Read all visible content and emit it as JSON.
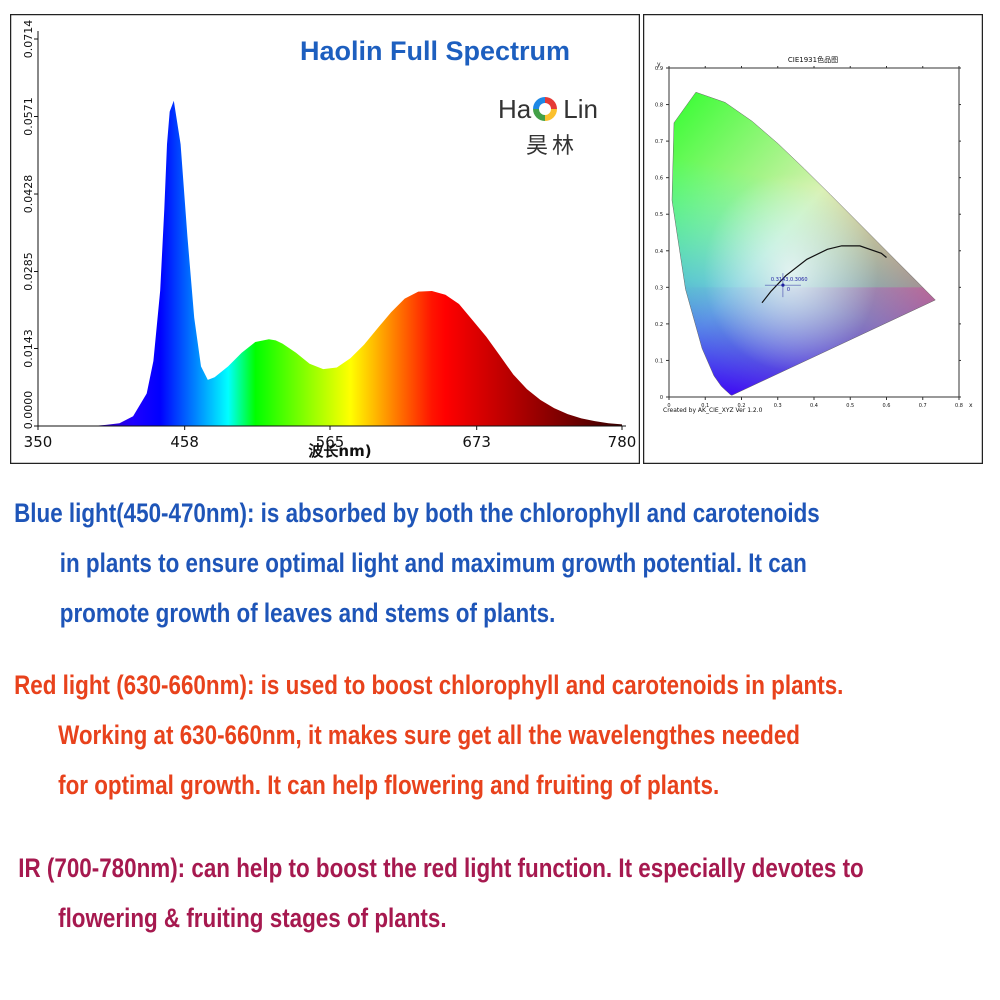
{
  "header": {
    "brand_title": "Haolin Full Spectrum",
    "logo": {
      "text_left": "Ha",
      "text_right": "Lin",
      "text_cn": "昊林",
      "ring_colors": [
        "#e53935",
        "#fbc02d",
        "#43a047",
        "#1e88e5"
      ]
    }
  },
  "chart_data": [
    {
      "type": "area",
      "xlabel": "波长nm)",
      "ylabel": "",
      "xlim": [
        350,
        780
      ],
      "ylim": [
        0,
        0.0714
      ],
      "x_ticks": [
        "350",
        "458",
        "565",
        "673",
        "780"
      ],
      "y_ticks": [
        "0.0000",
        "0.0143",
        "0.0285",
        "0.0428",
        "0.0571",
        "0.0714"
      ],
      "grid": false,
      "fill": "wavelength-color gradient",
      "x": [
        350,
        390,
        400,
        410,
        420,
        430,
        435,
        440,
        443,
        445,
        447,
        450,
        455,
        460,
        465,
        470,
        475,
        480,
        490,
        500,
        510,
        520,
        525,
        530,
        540,
        550,
        560,
        570,
        580,
        590,
        600,
        610,
        620,
        630,
        640,
        650,
        660,
        670,
        680,
        690,
        700,
        710,
        720,
        730,
        740,
        750,
        760,
        770,
        780
      ],
      "values": [
        0,
        0,
        0.0002,
        0.0005,
        0.0018,
        0.006,
        0.012,
        0.025,
        0.04,
        0.052,
        0.058,
        0.06,
        0.052,
        0.035,
        0.02,
        0.011,
        0.0085,
        0.009,
        0.011,
        0.0135,
        0.0155,
        0.016,
        0.0158,
        0.0152,
        0.0135,
        0.0115,
        0.0105,
        0.0108,
        0.0125,
        0.015,
        0.018,
        0.021,
        0.0235,
        0.0248,
        0.0249,
        0.0242,
        0.0225,
        0.0195,
        0.0165,
        0.013,
        0.0095,
        0.0068,
        0.0048,
        0.0033,
        0.0022,
        0.0014,
        0.0009,
        0.0005,
        0.0003
      ]
    },
    {
      "type": "scatter",
      "title": "CIE1931色品图",
      "xlabel": "x",
      "ylabel": "y",
      "xlim": [
        0,
        0.8
      ],
      "ylim": [
        0,
        0.9
      ],
      "x_ticks": [
        "0",
        "0.1",
        "0.2",
        "0.3",
        "0.4",
        "0.5",
        "0.6",
        "0.7",
        "0.8"
      ],
      "y_ticks": [
        "0",
        "0.1",
        "0.2",
        "0.3",
        "0.4",
        "0.5",
        "0.6",
        "0.7",
        "0.8",
        "0.9"
      ],
      "footer": "Created by AK_CIE_XYZ Ver 1.2.0",
      "point_label": "0.3143,0.3060",
      "point_marker": "0",
      "series": [
        {
          "x": [
            0.3143
          ],
          "y": [
            0.306
          ]
        }
      ],
      "locus_x": [
        0.1741,
        0.1738,
        0.173,
        0.1714,
        0.1689,
        0.1644,
        0.1566,
        0.144,
        0.1241,
        0.0913,
        0.0454,
        0.0082,
        0.0139,
        0.0743,
        0.1547,
        0.2296,
        0.3016,
        0.3731,
        0.4441,
        0.5125,
        0.5752,
        0.627,
        0.6658,
        0.6915,
        0.7079,
        0.7176,
        0.7347
      ],
      "locus_y": [
        0.005,
        0.0049,
        0.0048,
        0.0051,
        0.0069,
        0.0109,
        0.0177,
        0.0297,
        0.0578,
        0.1327,
        0.295,
        0.5384,
        0.7502,
        0.8338,
        0.8059,
        0.7543,
        0.6923,
        0.6245,
        0.5547,
        0.4866,
        0.4242,
        0.3725,
        0.334,
        0.3083,
        0.292,
        0.2824,
        0.2653
      ],
      "planckian_x": [
        0.2565,
        0.2806,
        0.3221,
        0.3805,
        0.4369,
        0.4764,
        0.5266,
        0.5857,
        0.6001
      ],
      "planckian_y": [
        0.2577,
        0.2883,
        0.3318,
        0.3768,
        0.4041,
        0.4137,
        0.4133,
        0.3931,
        0.3816
      ]
    }
  ],
  "paragraphs": {
    "blue": {
      "color": "#1e55b8",
      "lines": [
        "Blue light(450-470nm): is absorbed by both  the chlorophyll and carotenoids",
        "in plants to ensure optimal light and maximum growth potential. It can",
        "promote  growth of leaves and stems of plants."
      ]
    },
    "red": {
      "color": "#e8421c",
      "lines": [
        "Red light (630-660nm): is used to boost chlorophyll and carotenoids in plants.",
        "Working at 630-660nm, it makes sure get all the wavelengthes needed",
        "for optimal growth. It can help flowering and fruiting of plants."
      ]
    },
    "ir": {
      "color": "#a6194f",
      "lines": [
        "IR (700-780nm): can help to boost the red light function. It especially devotes to",
        "flowering & fruiting stages of plants."
      ]
    }
  }
}
